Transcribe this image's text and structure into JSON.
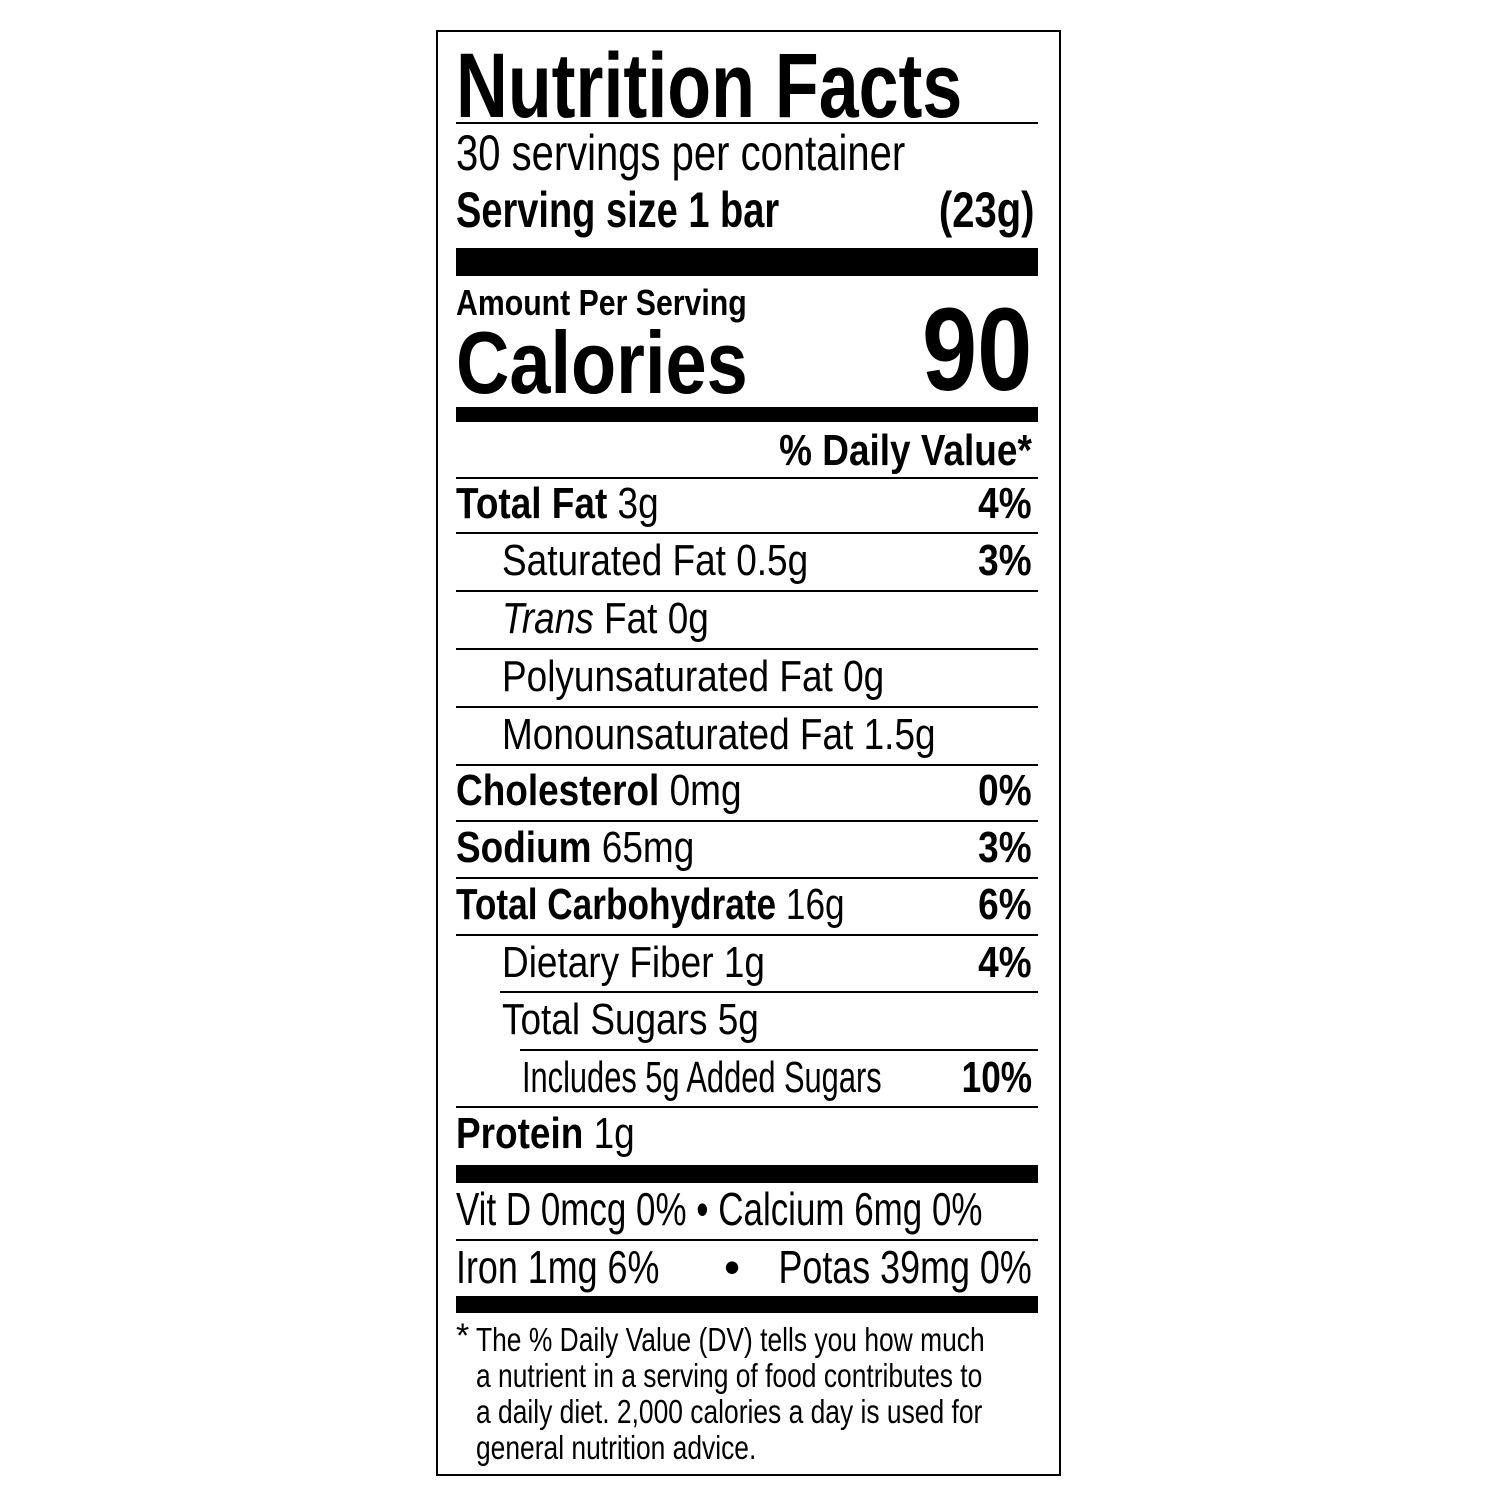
{
  "title": "Nutrition Facts",
  "servings_per_container": "30 servings per container",
  "serving_size_label": "Serving size 1 bar",
  "serving_size_weight": "(23g)",
  "amount_per_serving": "Amount Per Serving",
  "calories_label": "Calories",
  "calories_value": "90",
  "daily_value_header": "% Daily Value*",
  "nutrients": [
    {
      "name": "Total Fat",
      "amount": "3g",
      "dv": "4%"
    },
    {
      "name": "Saturated Fat",
      "amount": "0.5g",
      "dv": "3%"
    },
    {
      "name": "Trans",
      "amount": "Fat 0g",
      "dv": ""
    },
    {
      "name": "Polyunsaturated Fat",
      "amount": "0g",
      "dv": ""
    },
    {
      "name": "Monounsaturated Fat",
      "amount": "1.5g",
      "dv": ""
    },
    {
      "name": "Cholesterol",
      "amount": "0mg",
      "dv": "0%"
    },
    {
      "name": "Sodium",
      "amount": "65mg",
      "dv": "3%"
    },
    {
      "name": "Total Carbohydrate",
      "amount": "16g",
      "dv": "6%"
    },
    {
      "name": "Dietary Fiber",
      "amount": "1g",
      "dv": "4%"
    },
    {
      "name": "Total Sugars",
      "amount": "5g",
      "dv": ""
    },
    {
      "name": "Includes 5g Added Sugars",
      "amount": "",
      "dv": "10%"
    },
    {
      "name": "Protein",
      "amount": "1g",
      "dv": ""
    }
  ],
  "vitamins": {
    "line1_left": "Vit D 0mcg 0%",
    "line1_right": "Calcium 6mg 0%",
    "line2_left": "Iron 1mg 6%",
    "line2_right": "Potas 39mg 0%",
    "bullet": "•"
  },
  "footnote": {
    "star": "*",
    "lines": [
      "The % Daily Value (DV) tells you how much",
      "a nutrient in a serving of food contributes to",
      "a daily diet. 2,000 calories a day is used for",
      "general nutrition advice."
    ]
  }
}
